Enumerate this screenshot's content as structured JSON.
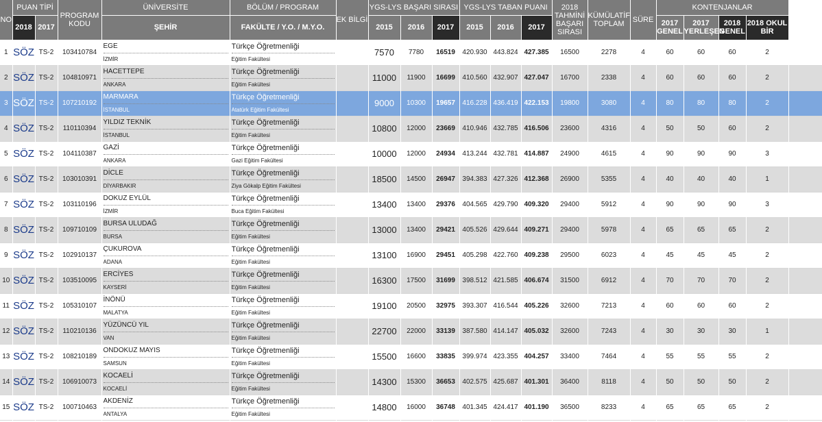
{
  "headers": {
    "no": "NO",
    "puan_tipi": "PUAN TİPİ",
    "y2018": "2018",
    "y2017": "2017",
    "program_kodu": "PROGRAM KODU",
    "universite": "ÜNİVERSİTE",
    "sehir": "ŞEHİR",
    "bolum": "BÖLÜM / PROGRAM",
    "fakulte": "FAKÜLTE / Y.O. / M.Y.O.",
    "ek_bilgi": "EK BİLGİ",
    "basari_sirasi": "YGS-LYS BAŞARI SIRASI",
    "taban_puani": "YGS-LYS TABAN PUANI",
    "y2015": "2015",
    "y2016": "2016",
    "tahmini": "2018 TAHMİNİ BAŞARI SIRASI",
    "kumulatif": "KÜMÜLATİF TOPLAM",
    "sure": "SÜRE",
    "kontenjanlar": "KONTENJANLAR",
    "k2017_genel": "2017 GENEL",
    "k2017_yerlesen": "2017 YERLEŞEN",
    "k2018_genel": "2018 GENEL",
    "k2018_okulbir": "2018 OKUL BİR"
  },
  "rows": [
    {
      "no": "1",
      "puan": "SÖZ",
      "puan2017": "TS-2",
      "kod": "103410784",
      "uni": "EGE",
      "sehir": "İZMİR",
      "bolum": "Türkçe Öğretmenliği",
      "fakulte": "Eğitim Fakültesi",
      "bs2015": "7570",
      "bs2016": "7780",
      "bs2017": "16519",
      "tp2015": "420.930",
      "tp2016": "443.824",
      "tp2017": "427.385",
      "tahmini": "16500",
      "kumulatif": "2278",
      "sure": "4",
      "g2017": "60",
      "y2017": "60",
      "g2018": "60",
      "ob2018": "2"
    },
    {
      "no": "2",
      "puan": "SÖZ",
      "puan2017": "TS-2",
      "kod": "104810971",
      "uni": "HACETTEPE",
      "sehir": "ANKARA",
      "bolum": "Türkçe Öğretmenliği",
      "fakulte": "Eğitim Fakültesi",
      "bs2015": "11000",
      "bs2016": "11900",
      "bs2017": "16699",
      "tp2015": "410.560",
      "tp2016": "432.907",
      "tp2017": "427.047",
      "tahmini": "16700",
      "kumulatif": "2338",
      "sure": "4",
      "g2017": "60",
      "y2017": "60",
      "g2018": "60",
      "ob2018": "2"
    },
    {
      "no": "3",
      "puan": "SÖZ",
      "puan2017": "TS-2",
      "kod": "107210192",
      "uni": "MARMARA",
      "sehir": "İSTANBUL",
      "bolum": "Türkçe Öğretmenliği",
      "fakulte": "Atatürk Eğitim Fakültesi",
      "bs2015": "9000",
      "bs2016": "10300",
      "bs2017": "19657",
      "tp2015": "416.228",
      "tp2016": "436.419",
      "tp2017": "422.153",
      "tahmini": "19800",
      "kumulatif": "3080",
      "sure": "4",
      "g2017": "80",
      "y2017": "80",
      "g2018": "80",
      "ob2018": "2"
    },
    {
      "no": "4",
      "puan": "SÖZ",
      "puan2017": "TS-2",
      "kod": "110110394",
      "uni": "YILDIZ TEKNİK",
      "sehir": "İSTANBUL",
      "bolum": "Türkçe Öğretmenliği",
      "fakulte": "Eğitim Fakültesi",
      "bs2015": "10800",
      "bs2016": "12000",
      "bs2017": "23669",
      "tp2015": "410.946",
      "tp2016": "432.785",
      "tp2017": "416.506",
      "tahmini": "23600",
      "kumulatif": "4316",
      "sure": "4",
      "g2017": "50",
      "y2017": "50",
      "g2018": "60",
      "ob2018": "2"
    },
    {
      "no": "5",
      "puan": "SÖZ",
      "puan2017": "TS-2",
      "kod": "104110387",
      "uni": "GAZİ",
      "sehir": "ANKARA",
      "bolum": "Türkçe Öğretmenliği",
      "fakulte": "Gazi Eğitim Fakültesi",
      "bs2015": "10000",
      "bs2016": "12000",
      "bs2017": "24934",
      "tp2015": "413.244",
      "tp2016": "432.781",
      "tp2017": "414.887",
      "tahmini": "24900",
      "kumulatif": "4615",
      "sure": "4",
      "g2017": "90",
      "y2017": "90",
      "g2018": "90",
      "ob2018": "3"
    },
    {
      "no": "6",
      "puan": "SÖZ",
      "puan2017": "TS-2",
      "kod": "103010391",
      "uni": "DİCLE",
      "sehir": "DİYARBAKIR",
      "bolum": "Türkçe Öğretmenliği",
      "fakulte": "Ziya Gökalp Eğitim Fakültesi",
      "bs2015": "18500",
      "bs2016": "14500",
      "bs2017": "26947",
      "tp2015": "394.383",
      "tp2016": "427.326",
      "tp2017": "412.368",
      "tahmini": "26900",
      "kumulatif": "5355",
      "sure": "4",
      "g2017": "40",
      "y2017": "40",
      "g2018": "40",
      "ob2018": "1"
    },
    {
      "no": "7",
      "puan": "SÖZ",
      "puan2017": "TS-2",
      "kod": "103110196",
      "uni": "DOKUZ EYLÜL",
      "sehir": "İZMİR",
      "bolum": "Türkçe Öğretmenliği",
      "fakulte": "Buca Eğitim Fakültesi",
      "bs2015": "13400",
      "bs2016": "13400",
      "bs2017": "29376",
      "tp2015": "404.565",
      "tp2016": "429.790",
      "tp2017": "409.320",
      "tahmini": "29400",
      "kumulatif": "5912",
      "sure": "4",
      "g2017": "90",
      "y2017": "90",
      "g2018": "90",
      "ob2018": "3"
    },
    {
      "no": "8",
      "puan": "SÖZ",
      "puan2017": "TS-2",
      "kod": "109710109",
      "uni": "BURSA ULUDAĞ",
      "sehir": "BURSA",
      "bolum": "Türkçe Öğretmenliği",
      "fakulte": "Eğitim Fakültesi",
      "bs2015": "13000",
      "bs2016": "13400",
      "bs2017": "29421",
      "tp2015": "405.526",
      "tp2016": "429.644",
      "tp2017": "409.271",
      "tahmini": "29400",
      "kumulatif": "5978",
      "sure": "4",
      "g2017": "65",
      "y2017": "65",
      "g2018": "65",
      "ob2018": "2"
    },
    {
      "no": "9",
      "puan": "SÖZ",
      "puan2017": "TS-2",
      "kod": "102910137",
      "uni": "ÇUKUROVA",
      "sehir": "ADANA",
      "bolum": "Türkçe Öğretmenliği",
      "fakulte": "Eğitim Fakültesi",
      "bs2015": "13100",
      "bs2016": "16900",
      "bs2017": "29451",
      "tp2015": "405.298",
      "tp2016": "422.760",
      "tp2017": "409.238",
      "tahmini": "29500",
      "kumulatif": "6023",
      "sure": "4",
      "g2017": "45",
      "y2017": "45",
      "g2018": "45",
      "ob2018": "2"
    },
    {
      "no": "10",
      "puan": "SÖZ",
      "puan2017": "TS-2",
      "kod": "103510095",
      "uni": "ERCİYES",
      "sehir": "KAYSERİ",
      "bolum": "Türkçe Öğretmenliği",
      "fakulte": "Eğitim Fakültesi",
      "bs2015": "16300",
      "bs2016": "17500",
      "bs2017": "31699",
      "tp2015": "398.512",
      "tp2016": "421.585",
      "tp2017": "406.674",
      "tahmini": "31500",
      "kumulatif": "6912",
      "sure": "4",
      "g2017": "70",
      "y2017": "70",
      "g2018": "70",
      "ob2018": "2"
    },
    {
      "no": "11",
      "puan": "SÖZ",
      "puan2017": "TS-2",
      "kod": "105310107",
      "uni": "İNÖNÜ",
      "sehir": "MALATYA",
      "bolum": "Türkçe Öğretmenliği",
      "fakulte": "Eğitim Fakültesi",
      "bs2015": "19100",
      "bs2016": "20500",
      "bs2017": "32975",
      "tp2015": "393.307",
      "tp2016": "416.544",
      "tp2017": "405.226",
      "tahmini": "32600",
      "kumulatif": "7213",
      "sure": "4",
      "g2017": "60",
      "y2017": "60",
      "g2018": "60",
      "ob2018": "2"
    },
    {
      "no": "12",
      "puan": "SÖZ",
      "puan2017": "TS-2",
      "kod": "110210136",
      "uni": "YÜZÜNCÜ YIL",
      "sehir": "VAN",
      "bolum": "Türkçe Öğretmenliği",
      "fakulte": "Eğitim Fakültesi",
      "bs2015": "22700",
      "bs2016": "22000",
      "bs2017": "33139",
      "tp2015": "387.580",
      "tp2016": "414.147",
      "tp2017": "405.032",
      "tahmini": "32600",
      "kumulatif": "7243",
      "sure": "4",
      "g2017": "30",
      "y2017": "30",
      "g2018": "30",
      "ob2018": "1"
    },
    {
      "no": "13",
      "puan": "SÖZ",
      "puan2017": "TS-2",
      "kod": "108210189",
      "uni": "ONDOKUZ MAYIS",
      "sehir": "SAMSUN",
      "bolum": "Türkçe Öğretmenliği",
      "fakulte": "Eğitim Fakültesi",
      "bs2015": "15500",
      "bs2016": "16600",
      "bs2017": "33835",
      "tp2015": "399.974",
      "tp2016": "423.355",
      "tp2017": "404.257",
      "tahmini": "33400",
      "kumulatif": "7464",
      "sure": "4",
      "g2017": "55",
      "y2017": "55",
      "g2018": "55",
      "ob2018": "2"
    },
    {
      "no": "14",
      "puan": "SÖZ",
      "puan2017": "TS-2",
      "kod": "106910073",
      "uni": "KOCAELİ",
      "sehir": "KOCAELİ",
      "bolum": "Türkçe Öğretmenliği",
      "fakulte": "Eğitim Fakültesi",
      "bs2015": "14300",
      "bs2016": "15300",
      "bs2017": "36653",
      "tp2015": "402.575",
      "tp2016": "425.687",
      "tp2017": "401.301",
      "tahmini": "36400",
      "kumulatif": "8118",
      "sure": "4",
      "g2017": "50",
      "y2017": "50",
      "g2018": "50",
      "ob2018": "2"
    },
    {
      "no": "15",
      "puan": "SÖZ",
      "puan2017": "TS-2",
      "kod": "100710463",
      "uni": "AKDENİZ",
      "sehir": "ANTALYA",
      "bolum": "Türkçe Öğretmenliği",
      "fakulte": "Eğitim Fakültesi",
      "bs2015": "14800",
      "bs2016": "16000",
      "bs2017": "36748",
      "tp2015": "401.345",
      "tp2016": "424.417",
      "tp2017": "401.190",
      "tahmini": "36500",
      "kumulatif": "8233",
      "sure": "4",
      "g2017": "65",
      "y2017": "65",
      "g2018": "65",
      "ob2018": "2"
    }
  ],
  "selected_row": 3,
  "colors": {
    "header_bg": "#7b7b7b",
    "header_dark": "#2a2a2a",
    "row_alt": "#dcdcdc",
    "row_selected": "#7da7de",
    "puan_text": "#1a3a8a"
  }
}
